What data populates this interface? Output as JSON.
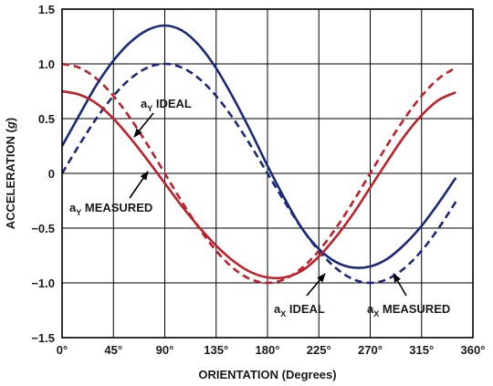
{
  "chart_data": {
    "type": "line",
    "xlabel": "ORIENTATION (Degrees)",
    "ylabel_main": "ACCELERATION (",
    "ylabel_unit": "g",
    "ylabel_close": ")",
    "xlim": [
      0,
      360
    ],
    "ylim": [
      -1.5,
      1.5
    ],
    "x_ticks": [
      0,
      45,
      90,
      135,
      180,
      225,
      270,
      315,
      360
    ],
    "x_tick_labels": [
      "0°",
      "45°",
      "90°",
      "135°",
      "180°",
      "225°",
      "270°",
      "315°",
      "360°"
    ],
    "y_ticks": [
      1.5,
      1.0,
      0.5,
      0,
      -0.5,
      -1.0,
      -1.5
    ],
    "y_tick_labels": [
      "1.5",
      "1.0",
      "0.5",
      "0",
      "−0.5",
      "−1.0",
      "−1.5"
    ],
    "grid": true,
    "x": [
      0,
      15,
      30,
      45,
      60,
      75,
      90,
      105,
      120,
      135,
      150,
      165,
      180,
      195,
      210,
      225,
      240,
      255,
      270,
      285,
      300,
      315,
      330,
      345
    ],
    "series": [
      {
        "key": "ax_ideal",
        "color": "#1a2a7a",
        "style": "dashed",
        "values": [
          0.0,
          0.259,
          0.5,
          0.707,
          0.866,
          0.966,
          1.0,
          0.966,
          0.866,
          0.707,
          0.5,
          0.259,
          0.0,
          -0.259,
          -0.5,
          -0.707,
          -0.866,
          -0.966,
          -1.0,
          -0.966,
          -0.866,
          -0.707,
          -0.5,
          -0.259
        ]
      },
      {
        "key": "ax_measured",
        "color": "#1a2a7a",
        "style": "solid",
        "values": [
          0.25,
          0.53,
          0.805,
          1.03,
          1.2,
          1.31,
          1.35,
          1.305,
          1.17,
          0.96,
          0.69,
          0.39,
          0.07,
          -0.23,
          -0.5,
          -0.69,
          -0.81,
          -0.86,
          -0.85,
          -0.78,
          -0.65,
          -0.48,
          -0.27,
          -0.04
        ]
      },
      {
        "key": "ay_ideal",
        "color": "#c0202a",
        "style": "dashed",
        "values": [
          1.0,
          0.966,
          0.866,
          0.707,
          0.5,
          0.259,
          0.0,
          -0.259,
          -0.5,
          -0.707,
          -0.866,
          -0.966,
          -1.0,
          -0.966,
          -0.866,
          -0.707,
          -0.5,
          -0.259,
          0.0,
          0.259,
          0.5,
          0.707,
          0.866,
          0.966
        ]
      },
      {
        "key": "ay_measured",
        "color": "#c0202a",
        "style": "solid",
        "values": [
          0.75,
          0.72,
          0.64,
          0.5,
          0.32,
          0.12,
          -0.09,
          -0.3,
          -0.49,
          -0.66,
          -0.8,
          -0.9,
          -0.95,
          -0.95,
          -0.89,
          -0.76,
          -0.58,
          -0.37,
          -0.13,
          0.11,
          0.34,
          0.53,
          0.67,
          0.74
        ]
      }
    ],
    "annotations": [
      {
        "key": "ay_ideal",
        "main": "a",
        "sub": "Y",
        "rest": " IDEAL"
      },
      {
        "key": "ay_measured",
        "main": "a",
        "sub": "Y",
        "rest": " MEASURED"
      },
      {
        "key": "ax_ideal",
        "main": "a",
        "sub": "X",
        "rest": " IDEAL"
      },
      {
        "key": "ax_measured",
        "main": "a",
        "sub": "X",
        "rest": " MEASURED"
      }
    ]
  }
}
